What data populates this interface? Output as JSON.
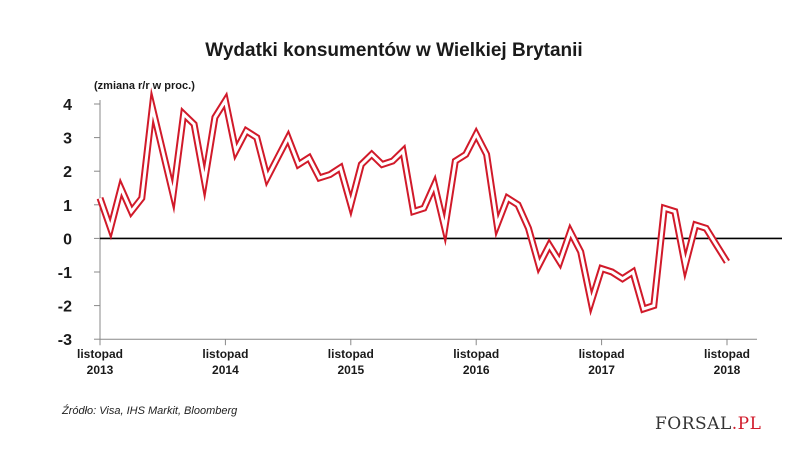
{
  "chart_data": {
    "type": "line",
    "title": "Wydatki konsumentów w Wielkiej Brytanii",
    "ylabel": "(zmiana r/r w proc.)",
    "xlabel": "",
    "ylim": [
      -3,
      4
    ],
    "yticks": [
      "4",
      "3",
      "2",
      "1",
      "0",
      "-1",
      "-2",
      "-3"
    ],
    "xticks": [
      {
        "index": 0,
        "line1": "listopad",
        "line2": "2013"
      },
      {
        "index": 12,
        "line1": "listopad",
        "line2": "2014"
      },
      {
        "index": 24,
        "line1": "listopad",
        "line2": "2015"
      },
      {
        "index": 36,
        "line1": "listopad",
        "line2": "2016"
      },
      {
        "index": 48,
        "line1": "listopad",
        "line2": "2017"
      },
      {
        "index": 60,
        "line1": "listopad",
        "line2": "2018"
      }
    ],
    "series": [
      {
        "values": [
          1.2,
          0.3,
          1.5,
          0.8,
          1.2,
          3.9,
          2.6,
          1.3,
          3.7,
          3.4,
          1.7,
          3.6,
          4.1,
          2.6,
          3.2,
          3.0,
          1.8,
          2.4,
          3.0,
          2.2,
          2.4,
          1.8,
          1.9,
          2.1,
          1.0,
          2.2,
          2.5,
          2.2,
          2.3,
          2.6,
          0.8,
          0.9,
          1.6,
          0.3,
          2.3,
          2.5,
          3.1,
          2.5,
          0.4,
          1.2,
          1.0,
          0.3,
          -0.8,
          -0.2,
          -0.7,
          0.2,
          -0.4,
          -1.9,
          -0.9,
          -1.0,
          -1.2,
          -1.0,
          -2.1,
          -2.0,
          0.9,
          0.8,
          -0.8,
          0.4,
          0.3,
          -0.2,
          -0.7
        ],
        "color": "#d11a2a"
      }
    ],
    "grid": false
  },
  "source": "Źródło: Visa, IHS Markit, Bloomberg",
  "logo": {
    "main": "FORSAL",
    "suffix": ".PL"
  }
}
